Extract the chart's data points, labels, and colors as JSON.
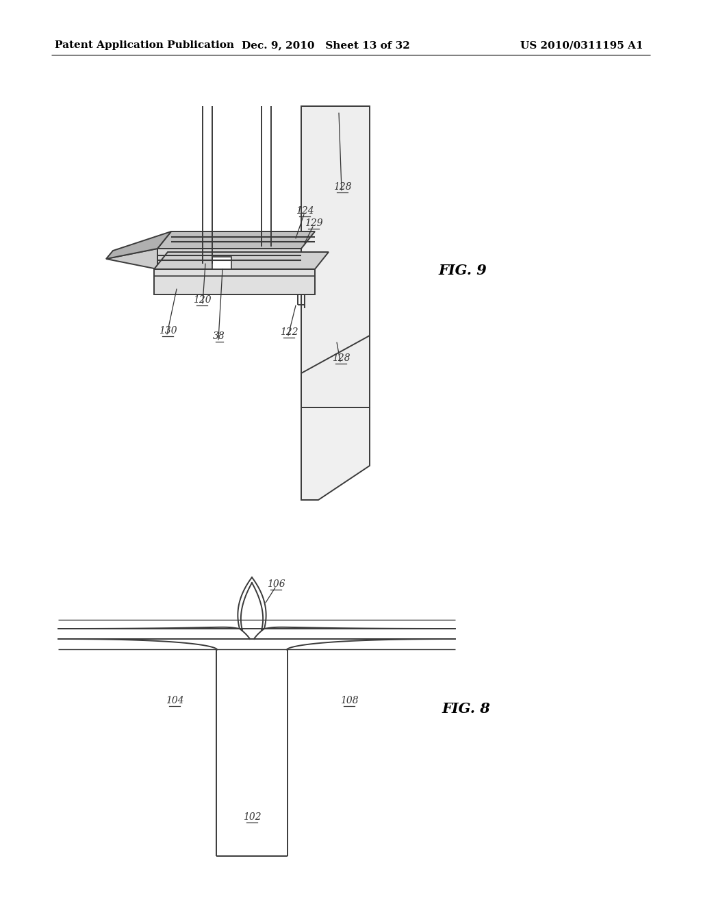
{
  "header_left": "Patent Application Publication",
  "header_mid": "Dec. 9, 2010   Sheet 13 of 32",
  "header_right": "US 2010/0311195 A1",
  "fig9_label": "FIG. 9",
  "fig8_label": "FIG. 8",
  "background_color": "#ffffff",
  "line_color": "#3a3a3a",
  "line_width": 1.4,
  "header_fontsize": 11,
  "fig_label_fontsize": 15
}
